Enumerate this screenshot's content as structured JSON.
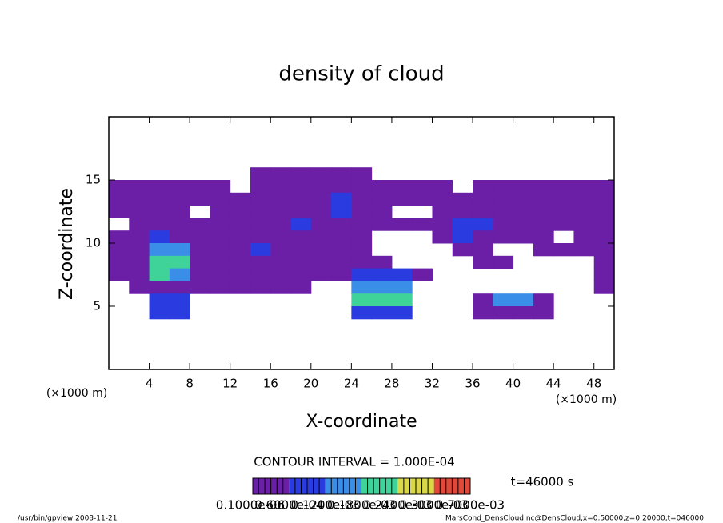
{
  "chart_data": {
    "type": "contour",
    "title": "density of cloud",
    "xlabel": "X-coordinate",
    "ylabel": "Z-coordinate",
    "xunit": "(×1000 m)",
    "yunit": "(×1000 m)",
    "contour_note": "CONTOUR INTERVAL = 1.000E-04",
    "time_note": "t=46000 s",
    "footer_left": "/usr/bin/gpview   2008-11-21",
    "footer_right": "MarsCond_DensCloud.nc@DensCloud,x=0:50000,z=0:20000,t=046000",
    "xlim": [
      0,
      50
    ],
    "ylim": [
      0,
      20
    ],
    "xticks": [
      4,
      8,
      12,
      16,
      20,
      24,
      28,
      32,
      36,
      40,
      44,
      48
    ],
    "yticks": [
      5,
      10,
      15
    ],
    "x": [
      1,
      3,
      5,
      7,
      9,
      11,
      13,
      15,
      17,
      19,
      21,
      23,
      25,
      27,
      29,
      31,
      33,
      35,
      37,
      39,
      41,
      43,
      45,
      47,
      49
    ],
    "y": [
      15.5,
      14.5,
      13.5,
      12.5,
      11.5,
      10.5,
      9.5,
      8.5,
      7.5,
      6.5,
      5.5,
      4.5
    ],
    "values": [
      [
        null,
        null,
        null,
        null,
        null,
        null,
        null,
        2e-05,
        2e-05,
        2e-05,
        2e-05,
        2e-05,
        2e-05,
        null,
        null,
        null,
        null,
        null,
        null,
        null,
        null,
        null,
        null,
        null,
        null
      ],
      [
        2e-05,
        2e-05,
        2e-05,
        2e-05,
        2e-05,
        2e-05,
        null,
        2e-05,
        2e-05,
        2e-05,
        2e-05,
        2e-05,
        2e-05,
        2e-05,
        2e-05,
        2e-05,
        2e-05,
        null,
        2e-05,
        2e-05,
        2e-05,
        2e-05,
        2e-05,
        2e-05,
        2e-05
      ],
      [
        2e-05,
        2e-05,
        2e-05,
        2e-05,
        2e-05,
        2e-05,
        2e-05,
        2e-05,
        2e-05,
        2e-05,
        2e-05,
        7e-05,
        2e-05,
        2e-05,
        2e-05,
        2e-05,
        2e-05,
        2e-05,
        2e-05,
        2e-05,
        2e-05,
        2e-05,
        2e-05,
        2e-05,
        2e-05
      ],
      [
        2e-05,
        2e-05,
        2e-05,
        2e-05,
        null,
        2e-05,
        2e-05,
        2e-05,
        2e-05,
        2e-05,
        2e-05,
        7e-05,
        2e-05,
        2e-05,
        null,
        null,
        2e-05,
        2e-05,
        2e-05,
        2e-05,
        2e-05,
        2e-05,
        2e-05,
        2e-05,
        2e-05
      ],
      [
        null,
        2e-05,
        2e-05,
        2e-05,
        2e-05,
        2e-05,
        2e-05,
        2e-05,
        2e-05,
        7e-05,
        2e-05,
        2e-05,
        2e-05,
        2e-05,
        2e-05,
        2e-05,
        2e-05,
        7e-05,
        7e-05,
        2e-05,
        2e-05,
        2e-05,
        2e-05,
        2e-05,
        2e-05
      ],
      [
        2e-05,
        2e-05,
        7e-05,
        2e-05,
        2e-05,
        2e-05,
        2e-05,
        2e-05,
        2e-05,
        2e-05,
        2e-05,
        2e-05,
        2e-05,
        null,
        null,
        null,
        2e-05,
        7e-05,
        2e-05,
        2e-05,
        2e-05,
        2e-05,
        null,
        2e-05,
        2e-05
      ],
      [
        2e-05,
        2e-05,
        0.00013,
        0.00013,
        2e-05,
        2e-05,
        2e-05,
        7e-05,
        2e-05,
        2e-05,
        2e-05,
        2e-05,
        2e-05,
        null,
        null,
        null,
        null,
        2e-05,
        2e-05,
        null,
        null,
        2e-05,
        2e-05,
        2e-05,
        2e-05
      ],
      [
        2e-05,
        2e-05,
        0.00019,
        0.00019,
        2e-05,
        2e-05,
        2e-05,
        2e-05,
        2e-05,
        2e-05,
        2e-05,
        2e-05,
        2e-05,
        2e-05,
        null,
        null,
        null,
        null,
        2e-05,
        2e-05,
        null,
        null,
        null,
        null,
        2e-05
      ],
      [
        2e-05,
        2e-05,
        0.00019,
        0.00013,
        2e-05,
        2e-05,
        2e-05,
        2e-05,
        2e-05,
        2e-05,
        2e-05,
        2e-05,
        7e-05,
        7e-05,
        7e-05,
        2e-05,
        null,
        null,
        null,
        null,
        null,
        null,
        null,
        null,
        2e-05
      ],
      [
        null,
        2e-05,
        2e-05,
        2e-05,
        2e-05,
        2e-05,
        2e-05,
        2e-05,
        2e-05,
        2e-05,
        null,
        null,
        0.00013,
        0.00013,
        0.00013,
        null,
        null,
        null,
        null,
        null,
        null,
        null,
        null,
        null,
        2e-05
      ],
      [
        null,
        null,
        7e-05,
        7e-05,
        null,
        null,
        null,
        null,
        null,
        null,
        null,
        null,
        0.00019,
        0.00019,
        0.00019,
        null,
        null,
        null,
        2e-05,
        0.00013,
        0.00013,
        2e-05,
        null,
        null,
        null
      ],
      [
        null,
        null,
        7e-05,
        7e-05,
        null,
        null,
        null,
        null,
        null,
        null,
        null,
        null,
        7e-05,
        7e-05,
        7e-05,
        null,
        null,
        null,
        2e-05,
        2e-05,
        2e-05,
        2e-05,
        null,
        null,
        null
      ]
    ],
    "levels": [
      {
        "value": 1e-07,
        "label": "0.1000e-06"
      },
      {
        "value": 6e-05,
        "label": "0.6000e-04"
      },
      {
        "value": 0.00012,
        "label": "0.1200e-03"
      },
      {
        "value": 0.00018,
        "label": "0.1800e-03"
      },
      {
        "value": 0.00024,
        "label": "0.2400e-03"
      },
      {
        "value": 0.0003,
        "label": "0.3000e-03"
      },
      {
        "value": 0.0007,
        "label": "0.7000e-03"
      }
    ],
    "colors": [
      "#6a1fa6",
      "#2a3ce0",
      "#3a8ee8",
      "#3fd39a",
      "#d8d848",
      "#e0483a"
    ]
  }
}
